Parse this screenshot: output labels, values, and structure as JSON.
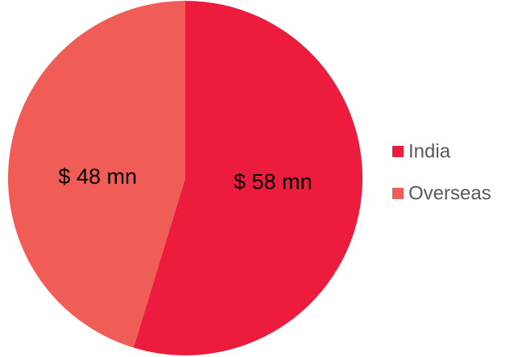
{
  "chart_data": {
    "type": "pie",
    "categories": [
      "India",
      "Overseas"
    ],
    "values": [
      58,
      48
    ],
    "value_labels": [
      "$ 58 mn",
      "$ 48 mn"
    ],
    "colors": [
      "#ed1b3c",
      "#f05d57"
    ],
    "legend": "right"
  }
}
